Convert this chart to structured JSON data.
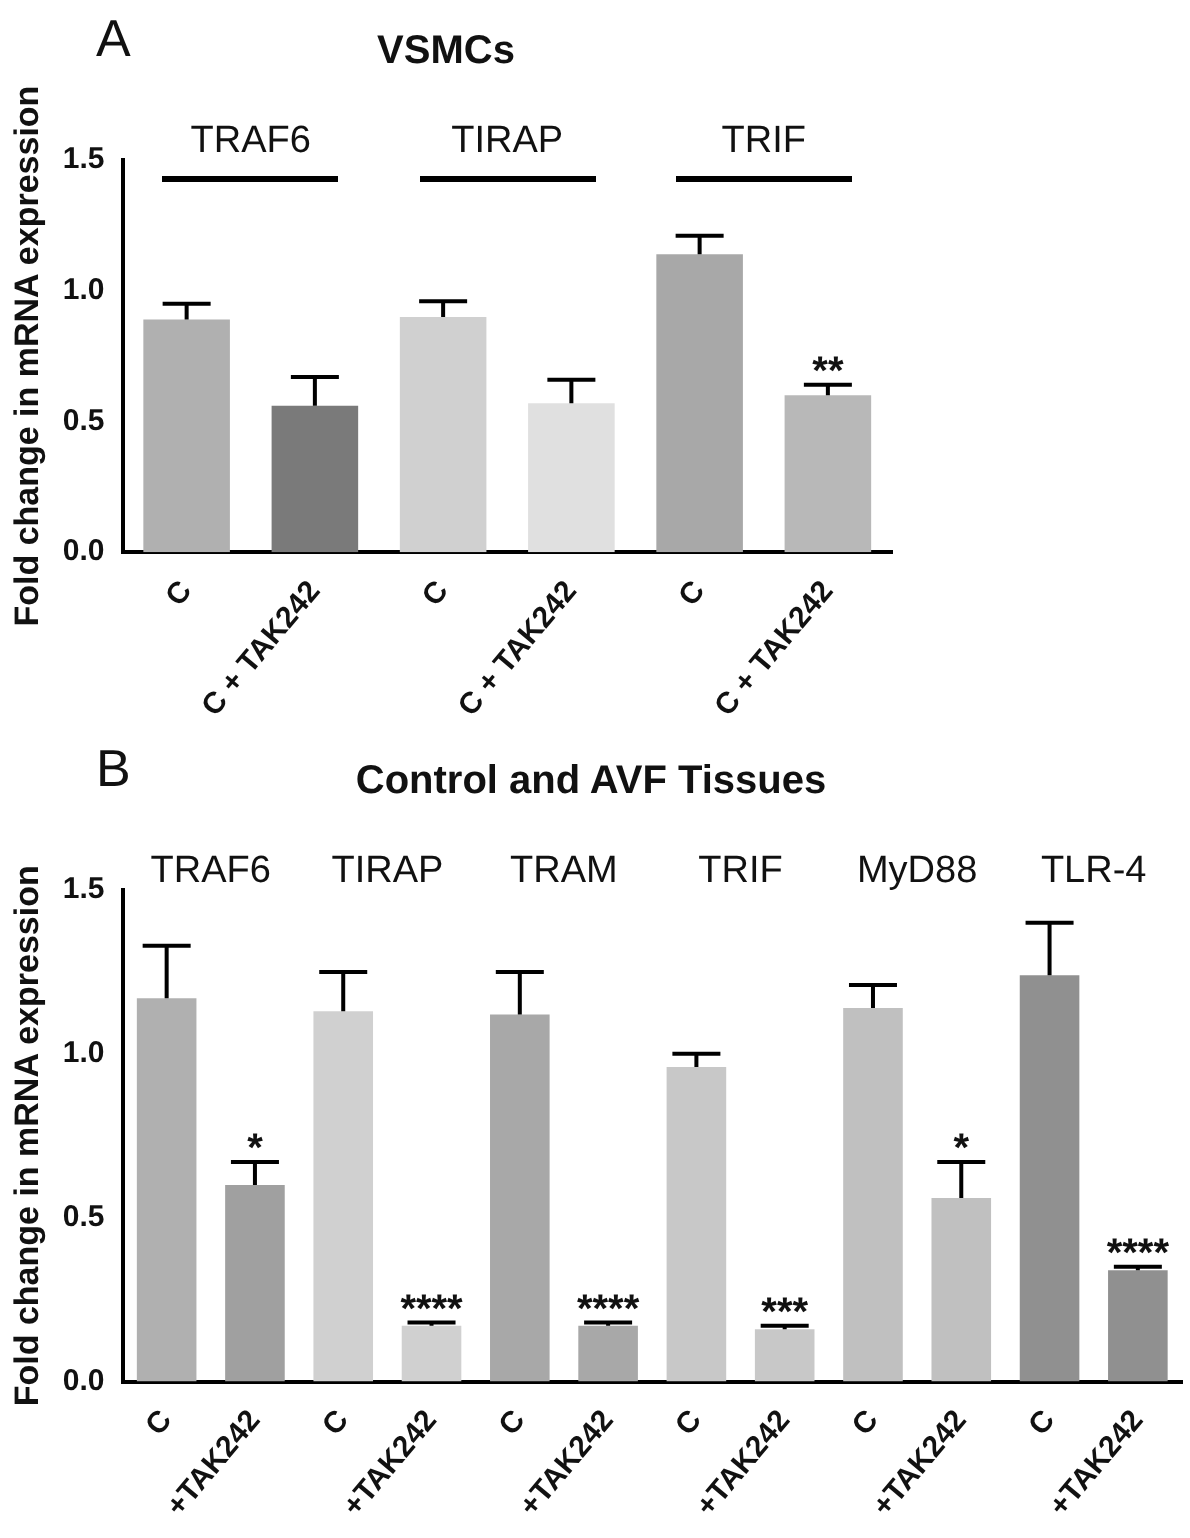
{
  "chart_data": [
    {
      "type": "bar",
      "title": "VSMCs",
      "ylabel": "Fold change in mRNA expression",
      "annotations": [
        "A",
        "TRAF6",
        "TIRAP",
        "TRIF"
      ],
      "categories": [
        "C",
        "C + TAK242",
        "C",
        "C + TAK242",
        "C",
        "C + TAK242"
      ],
      "values": [
        0.89,
        0.56,
        0.9,
        0.57,
        1.14,
        0.6
      ],
      "errors": [
        [
          0.89,
          0.95
        ],
        [
          0.56,
          0.67
        ],
        [
          0.9,
          0.96
        ],
        [
          0.57,
          0.66
        ],
        [
          1.14,
          1.21
        ],
        [
          0.6,
          0.64
        ]
      ],
      "value_labels": [
        null,
        null,
        null,
        null,
        null,
        "**"
      ],
      "colors": [
        "#b0b0b0",
        "#7a7a7a",
        "#d0d0d0",
        "#e0e0e0",
        "#a8a8a8",
        "#b8b8b8"
      ],
      "ylim": [
        0,
        1.5
      ],
      "yticks": [
        {
          "value": 0,
          "label": "0.0"
        },
        {
          "value": 0.5,
          "label": "0.5"
        },
        {
          "value": 1,
          "label": "1.0"
        },
        {
          "value": 1.5,
          "label": "1.5"
        }
      ],
      "grid": false,
      "legend": false
    },
    {
      "type": "bar",
      "title": "Control and AVF Tissues",
      "ylabel": "Fold change in mRNA expression",
      "annotations": [
        "B",
        "TRAF6",
        "TIRAP",
        "TRAM",
        "TRIF",
        "MyD88",
        "TLR-4"
      ],
      "categories": [
        "C",
        "+TAK242",
        "C",
        "+TAK242",
        "C",
        "+TAK242",
        "C",
        "+TAK242",
        "C",
        "+TAK242",
        "C",
        "+TAK242"
      ],
      "values": [
        1.17,
        0.6,
        1.13,
        0.17,
        1.12,
        0.17,
        0.96,
        0.16,
        1.14,
        0.56,
        1.24,
        0.34
      ],
      "errors": [
        [
          1.17,
          1.33
        ],
        [
          0.6,
          0.67
        ],
        [
          1.13,
          1.25
        ],
        [
          0.17,
          0.18
        ],
        [
          1.12,
          1.25
        ],
        [
          0.17,
          0.18
        ],
        [
          0.96,
          1.0
        ],
        [
          0.16,
          0.17
        ],
        [
          1.14,
          1.21
        ],
        [
          0.56,
          0.67
        ],
        [
          1.24,
          1.4
        ],
        [
          0.34,
          0.35
        ]
      ],
      "value_labels": [
        null,
        "*",
        null,
        "****",
        null,
        "****",
        null,
        "***",
        null,
        "*",
        null,
        "****"
      ],
      "colors": [
        "#b0b0b0",
        "#a0a0a0",
        "#d0d0d0",
        "#d0d0d0",
        "#a8a8a8",
        "#a8a8a8",
        "#c8c8c8",
        "#c8c8c8",
        "#c0c0c0",
        "#c0c0c0",
        "#909090",
        "#909090"
      ],
      "ylim": [
        0,
        1.5
      ],
      "yticks": [
        {
          "value": 0,
          "label": "0.0"
        },
        {
          "value": 0.5,
          "label": "0.5"
        },
        {
          "value": 1,
          "label": "1.0"
        },
        {
          "value": 1.5,
          "label": "1.5"
        }
      ],
      "grid": false,
      "legend": false
    }
  ]
}
